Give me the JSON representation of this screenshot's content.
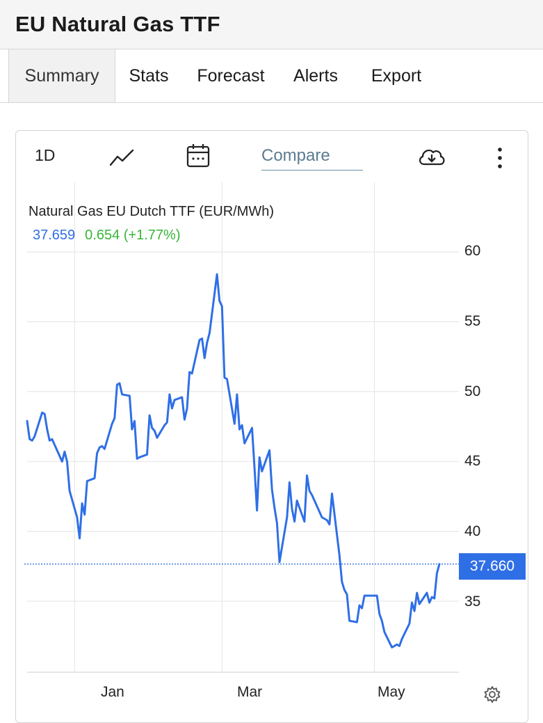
{
  "app": {
    "title": "EU Natural Gas TTF"
  },
  "tabs": [
    {
      "label": "Summary",
      "active": true
    },
    {
      "label": "Stats",
      "active": false
    },
    {
      "label": "Forecast",
      "active": false
    },
    {
      "label": "Alerts",
      "active": false
    },
    {
      "label": "Export",
      "active": false
    }
  ],
  "toolbar": {
    "period_label": "1D",
    "compare_label": "Compare",
    "icons": [
      "line-chart-icon",
      "calendar-icon",
      "download-cloud-icon",
      "more-vertical-icon"
    ]
  },
  "quote": {
    "name": "Natural Gas EU Dutch TTF (EUR/MWh)",
    "last": "37.659",
    "change": "0.654 (+1.77%)",
    "last_flag": "37.660"
  },
  "colors": {
    "line": "#2f6fe6",
    "positive": "#37b537",
    "grid": "#e3e3e3"
  },
  "chart_data": {
    "type": "line",
    "title": "Natural Gas EU Dutch TTF (EUR/MWh)",
    "xlabel": "",
    "ylabel": "",
    "x_ticks": [
      "Jan",
      "Mar",
      "May"
    ],
    "y_ticks": [
      35,
      40,
      45,
      50,
      55,
      60
    ],
    "ylim": [
      30,
      60
    ],
    "x_range": [
      "2022-12-13",
      "2023-05-27"
    ],
    "grid": true,
    "y_axis_side": "right",
    "last_value": 37.66,
    "series": [
      {
        "points": [
          [
            "2022-12-13",
            47.9
          ],
          [
            "2022-12-14",
            46.6
          ],
          [
            "2022-12-15",
            46.5
          ],
          [
            "2022-12-16",
            46.8
          ],
          [
            "2022-12-19",
            48.5
          ],
          [
            "2022-12-20",
            48.4
          ],
          [
            "2022-12-21",
            47.3
          ],
          [
            "2022-12-22",
            46.5
          ],
          [
            "2022-12-23",
            46.6
          ],
          [
            "2022-12-27",
            45.0
          ],
          [
            "2022-12-28",
            45.7
          ],
          [
            "2022-12-29",
            45.0
          ],
          [
            "2022-12-30",
            42.9
          ],
          [
            "2023-01-02",
            41.0
          ],
          [
            "2023-01-03",
            39.5
          ],
          [
            "2023-01-04",
            42.0
          ],
          [
            "2023-01-05",
            41.2
          ],
          [
            "2023-01-06",
            43.6
          ],
          [
            "2023-01-09",
            43.8
          ],
          [
            "2023-01-10",
            45.6
          ],
          [
            "2023-01-11",
            46.0
          ],
          [
            "2023-01-12",
            46.1
          ],
          [
            "2023-01-13",
            45.9
          ],
          [
            "2023-01-16",
            47.7
          ],
          [
            "2023-01-17",
            48.1
          ],
          [
            "2023-01-18",
            50.5
          ],
          [
            "2023-01-19",
            50.6
          ],
          [
            "2023-01-20",
            49.8
          ],
          [
            "2023-01-23",
            49.7
          ],
          [
            "2023-01-24",
            47.3
          ],
          [
            "2023-01-25",
            47.9
          ],
          [
            "2023-01-26",
            45.2
          ],
          [
            "2023-01-27",
            45.3
          ],
          [
            "2023-01-30",
            45.5
          ],
          [
            "2023-01-31",
            48.3
          ],
          [
            "2023-02-01",
            47.4
          ],
          [
            "2023-02-02",
            47.2
          ],
          [
            "2023-02-03",
            46.7
          ],
          [
            "2023-02-06",
            47.6
          ],
          [
            "2023-02-07",
            47.8
          ],
          [
            "2023-02-08",
            49.8
          ],
          [
            "2023-02-09",
            48.8
          ],
          [
            "2023-02-10",
            49.4
          ],
          [
            "2023-02-13",
            49.6
          ],
          [
            "2023-02-14",
            48.0
          ],
          [
            "2023-02-15",
            48.8
          ],
          [
            "2023-02-16",
            51.4
          ],
          [
            "2023-02-17",
            51.3
          ],
          [
            "2023-02-20",
            53.7
          ],
          [
            "2023-02-21",
            53.8
          ],
          [
            "2023-02-22",
            52.4
          ],
          [
            "2023-02-23",
            53.5
          ],
          [
            "2023-02-24",
            54.2
          ],
          [
            "2023-02-27",
            58.4
          ],
          [
            "2023-02-28",
            56.5
          ],
          [
            "2023-03-01",
            56.1
          ],
          [
            "2023-03-02",
            51.0
          ],
          [
            "2023-03-03",
            50.9
          ],
          [
            "2023-03-06",
            47.7
          ],
          [
            "2023-03-07",
            49.8
          ],
          [
            "2023-03-08",
            47.3
          ],
          [
            "2023-03-09",
            47.6
          ],
          [
            "2023-03-10",
            46.3
          ],
          [
            "2023-03-13",
            47.4
          ],
          [
            "2023-03-14",
            44.6
          ],
          [
            "2023-03-15",
            41.5
          ],
          [
            "2023-03-16",
            45.3
          ],
          [
            "2023-03-17",
            44.3
          ],
          [
            "2023-03-20",
            45.8
          ],
          [
            "2023-03-21",
            43.0
          ],
          [
            "2023-03-22",
            41.7
          ],
          [
            "2023-03-23",
            40.6
          ],
          [
            "2023-03-24",
            37.8
          ],
          [
            "2023-03-27",
            41.0
          ],
          [
            "2023-03-28",
            43.5
          ],
          [
            "2023-03-29",
            41.6
          ],
          [
            "2023-03-30",
            40.7
          ],
          [
            "2023-03-31",
            42.2
          ],
          [
            "2023-04-03",
            40.7
          ],
          [
            "2023-04-04",
            44.0
          ],
          [
            "2023-04-05",
            42.9
          ],
          [
            "2023-04-06",
            42.6
          ],
          [
            "2023-04-10",
            41.0
          ],
          [
            "2023-04-11",
            40.9
          ],
          [
            "2023-04-12",
            40.8
          ],
          [
            "2023-04-13",
            40.5
          ],
          [
            "2023-04-14",
            42.7
          ],
          [
            "2023-04-17",
            38.3
          ],
          [
            "2023-04-18",
            36.4
          ],
          [
            "2023-04-19",
            35.8
          ],
          [
            "2023-04-20",
            35.5
          ],
          [
            "2023-04-21",
            33.6
          ],
          [
            "2023-04-24",
            33.5
          ],
          [
            "2023-04-25",
            34.7
          ],
          [
            "2023-04-26",
            34.5
          ],
          [
            "2023-04-27",
            35.4
          ],
          [
            "2023-04-28",
            35.4
          ],
          [
            "2023-05-02",
            35.4
          ],
          [
            "2023-05-03",
            34.1
          ],
          [
            "2023-05-04",
            33.6
          ],
          [
            "2023-05-05",
            32.8
          ],
          [
            "2023-05-08",
            31.7
          ],
          [
            "2023-05-09",
            31.8
          ],
          [
            "2023-05-10",
            31.9
          ],
          [
            "2023-05-11",
            31.8
          ],
          [
            "2023-05-12",
            32.3
          ],
          [
            "2023-05-15",
            33.4
          ],
          [
            "2023-05-16",
            34.9
          ],
          [
            "2023-05-17",
            34.3
          ],
          [
            "2023-05-18",
            35.6
          ],
          [
            "2023-05-19",
            34.8
          ],
          [
            "2023-05-22",
            35.6
          ],
          [
            "2023-05-23",
            34.9
          ],
          [
            "2023-05-24",
            35.3
          ],
          [
            "2023-05-25",
            35.2
          ],
          [
            "2023-05-26",
            37.0
          ],
          [
            "2023-05-27",
            37.66
          ]
        ]
      }
    ]
  }
}
